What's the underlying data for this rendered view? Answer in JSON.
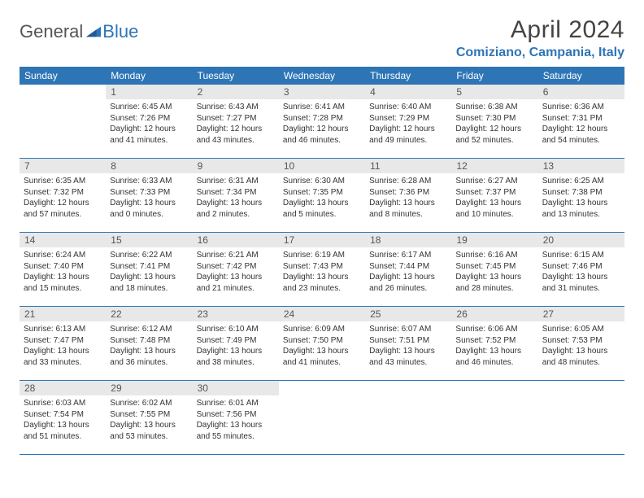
{
  "brand": {
    "part1": "General",
    "part2": "Blue"
  },
  "title": "April 2024",
  "location": "Comiziano, Campania, Italy",
  "colors": {
    "accent": "#2e75b6",
    "daybg": "#e8e8e8",
    "text": "#333333"
  },
  "dayNames": [
    "Sunday",
    "Monday",
    "Tuesday",
    "Wednesday",
    "Thursday",
    "Friday",
    "Saturday"
  ],
  "weeks": [
    [
      null,
      {
        "n": "1",
        "sr": "Sunrise: 6:45 AM",
        "ss": "Sunset: 7:26 PM",
        "d1": "Daylight: 12 hours",
        "d2": "and 41 minutes."
      },
      {
        "n": "2",
        "sr": "Sunrise: 6:43 AM",
        "ss": "Sunset: 7:27 PM",
        "d1": "Daylight: 12 hours",
        "d2": "and 43 minutes."
      },
      {
        "n": "3",
        "sr": "Sunrise: 6:41 AM",
        "ss": "Sunset: 7:28 PM",
        "d1": "Daylight: 12 hours",
        "d2": "and 46 minutes."
      },
      {
        "n": "4",
        "sr": "Sunrise: 6:40 AM",
        "ss": "Sunset: 7:29 PM",
        "d1": "Daylight: 12 hours",
        "d2": "and 49 minutes."
      },
      {
        "n": "5",
        "sr": "Sunrise: 6:38 AM",
        "ss": "Sunset: 7:30 PM",
        "d1": "Daylight: 12 hours",
        "d2": "and 52 minutes."
      },
      {
        "n": "6",
        "sr": "Sunrise: 6:36 AM",
        "ss": "Sunset: 7:31 PM",
        "d1": "Daylight: 12 hours",
        "d2": "and 54 minutes."
      }
    ],
    [
      {
        "n": "7",
        "sr": "Sunrise: 6:35 AM",
        "ss": "Sunset: 7:32 PM",
        "d1": "Daylight: 12 hours",
        "d2": "and 57 minutes."
      },
      {
        "n": "8",
        "sr": "Sunrise: 6:33 AM",
        "ss": "Sunset: 7:33 PM",
        "d1": "Daylight: 13 hours",
        "d2": "and 0 minutes."
      },
      {
        "n": "9",
        "sr": "Sunrise: 6:31 AM",
        "ss": "Sunset: 7:34 PM",
        "d1": "Daylight: 13 hours",
        "d2": "and 2 minutes."
      },
      {
        "n": "10",
        "sr": "Sunrise: 6:30 AM",
        "ss": "Sunset: 7:35 PM",
        "d1": "Daylight: 13 hours",
        "d2": "and 5 minutes."
      },
      {
        "n": "11",
        "sr": "Sunrise: 6:28 AM",
        "ss": "Sunset: 7:36 PM",
        "d1": "Daylight: 13 hours",
        "d2": "and 8 minutes."
      },
      {
        "n": "12",
        "sr": "Sunrise: 6:27 AM",
        "ss": "Sunset: 7:37 PM",
        "d1": "Daylight: 13 hours",
        "d2": "and 10 minutes."
      },
      {
        "n": "13",
        "sr": "Sunrise: 6:25 AM",
        "ss": "Sunset: 7:38 PM",
        "d1": "Daylight: 13 hours",
        "d2": "and 13 minutes."
      }
    ],
    [
      {
        "n": "14",
        "sr": "Sunrise: 6:24 AM",
        "ss": "Sunset: 7:40 PM",
        "d1": "Daylight: 13 hours",
        "d2": "and 15 minutes."
      },
      {
        "n": "15",
        "sr": "Sunrise: 6:22 AM",
        "ss": "Sunset: 7:41 PM",
        "d1": "Daylight: 13 hours",
        "d2": "and 18 minutes."
      },
      {
        "n": "16",
        "sr": "Sunrise: 6:21 AM",
        "ss": "Sunset: 7:42 PM",
        "d1": "Daylight: 13 hours",
        "d2": "and 21 minutes."
      },
      {
        "n": "17",
        "sr": "Sunrise: 6:19 AM",
        "ss": "Sunset: 7:43 PM",
        "d1": "Daylight: 13 hours",
        "d2": "and 23 minutes."
      },
      {
        "n": "18",
        "sr": "Sunrise: 6:17 AM",
        "ss": "Sunset: 7:44 PM",
        "d1": "Daylight: 13 hours",
        "d2": "and 26 minutes."
      },
      {
        "n": "19",
        "sr": "Sunrise: 6:16 AM",
        "ss": "Sunset: 7:45 PM",
        "d1": "Daylight: 13 hours",
        "d2": "and 28 minutes."
      },
      {
        "n": "20",
        "sr": "Sunrise: 6:15 AM",
        "ss": "Sunset: 7:46 PM",
        "d1": "Daylight: 13 hours",
        "d2": "and 31 minutes."
      }
    ],
    [
      {
        "n": "21",
        "sr": "Sunrise: 6:13 AM",
        "ss": "Sunset: 7:47 PM",
        "d1": "Daylight: 13 hours",
        "d2": "and 33 minutes."
      },
      {
        "n": "22",
        "sr": "Sunrise: 6:12 AM",
        "ss": "Sunset: 7:48 PM",
        "d1": "Daylight: 13 hours",
        "d2": "and 36 minutes."
      },
      {
        "n": "23",
        "sr": "Sunrise: 6:10 AM",
        "ss": "Sunset: 7:49 PM",
        "d1": "Daylight: 13 hours",
        "d2": "and 38 minutes."
      },
      {
        "n": "24",
        "sr": "Sunrise: 6:09 AM",
        "ss": "Sunset: 7:50 PM",
        "d1": "Daylight: 13 hours",
        "d2": "and 41 minutes."
      },
      {
        "n": "25",
        "sr": "Sunrise: 6:07 AM",
        "ss": "Sunset: 7:51 PM",
        "d1": "Daylight: 13 hours",
        "d2": "and 43 minutes."
      },
      {
        "n": "26",
        "sr": "Sunrise: 6:06 AM",
        "ss": "Sunset: 7:52 PM",
        "d1": "Daylight: 13 hours",
        "d2": "and 46 minutes."
      },
      {
        "n": "27",
        "sr": "Sunrise: 6:05 AM",
        "ss": "Sunset: 7:53 PM",
        "d1": "Daylight: 13 hours",
        "d2": "and 48 minutes."
      }
    ],
    [
      {
        "n": "28",
        "sr": "Sunrise: 6:03 AM",
        "ss": "Sunset: 7:54 PM",
        "d1": "Daylight: 13 hours",
        "d2": "and 51 minutes."
      },
      {
        "n": "29",
        "sr": "Sunrise: 6:02 AM",
        "ss": "Sunset: 7:55 PM",
        "d1": "Daylight: 13 hours",
        "d2": "and 53 minutes."
      },
      {
        "n": "30",
        "sr": "Sunrise: 6:01 AM",
        "ss": "Sunset: 7:56 PM",
        "d1": "Daylight: 13 hours",
        "d2": "and 55 minutes."
      },
      null,
      null,
      null,
      null
    ]
  ]
}
